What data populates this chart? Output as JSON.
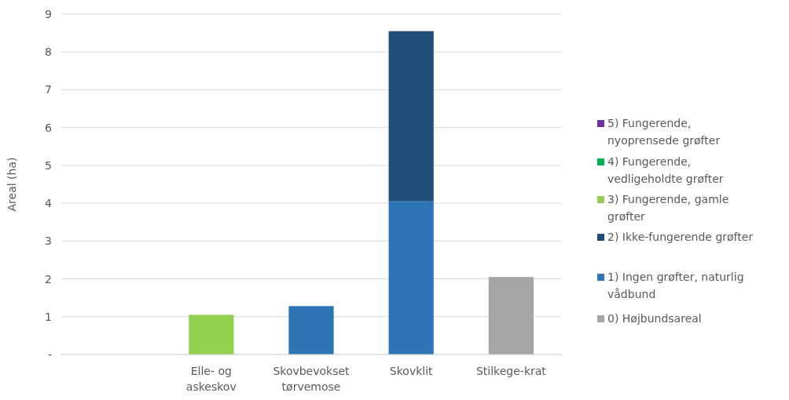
{
  "chart_data": {
    "type": "bar",
    "stacked": true,
    "ylabel": "Areal (ha)",
    "categories": [
      null,
      "Elle- og askeskov",
      "Skovbevokset tørvemose",
      "Skovklit",
      "Stilkege-krat"
    ],
    "series": [
      {
        "name": "0) Højbundsareal",
        "color": "#a5a5a5",
        "values": [
          null,
          null,
          null,
          null,
          2.05
        ]
      },
      {
        "name": "1) Ingen grøfter, naturlig vådbund",
        "color": "#2e75b6",
        "values": [
          null,
          null,
          1.28,
          4.05,
          null
        ]
      },
      {
        "name": "2) Ikke-fungerende grøfter",
        "color": "#1f4e79",
        "values": [
          null,
          null,
          null,
          4.5,
          null
        ]
      },
      {
        "name": "3) Fungerende, gamle grøfter",
        "color": "#92d050",
        "values": [
          null,
          1.05,
          null,
          null,
          null
        ]
      },
      {
        "name": "4) Fungerende, vedligeholdte grøfter",
        "color": "#00b050",
        "values": [
          null,
          null,
          null,
          null,
          null
        ]
      },
      {
        "name": "5) Fungerende, nyoprensede grøfter",
        "color": "#7030a0",
        "values": [
          null,
          null,
          null,
          null,
          null
        ]
      }
    ],
    "ylim": [
      0,
      9
    ],
    "yticks": [
      {
        "value": 0,
        "label": "-"
      },
      1,
      2,
      3,
      4,
      5,
      6,
      7,
      8,
      9
    ],
    "grid": "y",
    "legend": "right"
  }
}
